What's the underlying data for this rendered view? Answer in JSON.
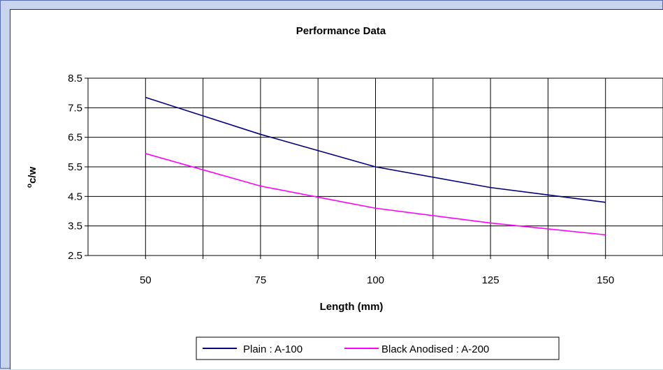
{
  "chart_data": {
    "type": "line",
    "title": "Performance Data",
    "xlabel": "Length (mm)",
    "ylabel_main": "c/w",
    "ylabel_superscript": "o",
    "x": [
      50,
      75,
      100,
      125,
      150
    ],
    "x_ticks": [
      "50",
      "75",
      "100",
      "125",
      "150"
    ],
    "xlim": [
      37.5,
      162.5
    ],
    "ylim": [
      2.5,
      8.5
    ],
    "y_ticks": [
      "2.5",
      "3.5",
      "4.5",
      "5.5",
      "6.5",
      "7.5",
      "8.5"
    ],
    "grid": true,
    "legend_position": "bottom",
    "series": [
      {
        "name": "Plain : A-100",
        "color": "#000080",
        "values": [
          7.85,
          6.6,
          5.5,
          4.8,
          4.3
        ]
      },
      {
        "name": "Black Anodised : A-200",
        "color": "#ff00ff",
        "values": [
          5.95,
          4.85,
          4.1,
          3.6,
          3.2
        ]
      }
    ]
  },
  "colors": {
    "background": "#c9d4ef",
    "plot_background": "#ffffff",
    "grid": "#000000"
  }
}
